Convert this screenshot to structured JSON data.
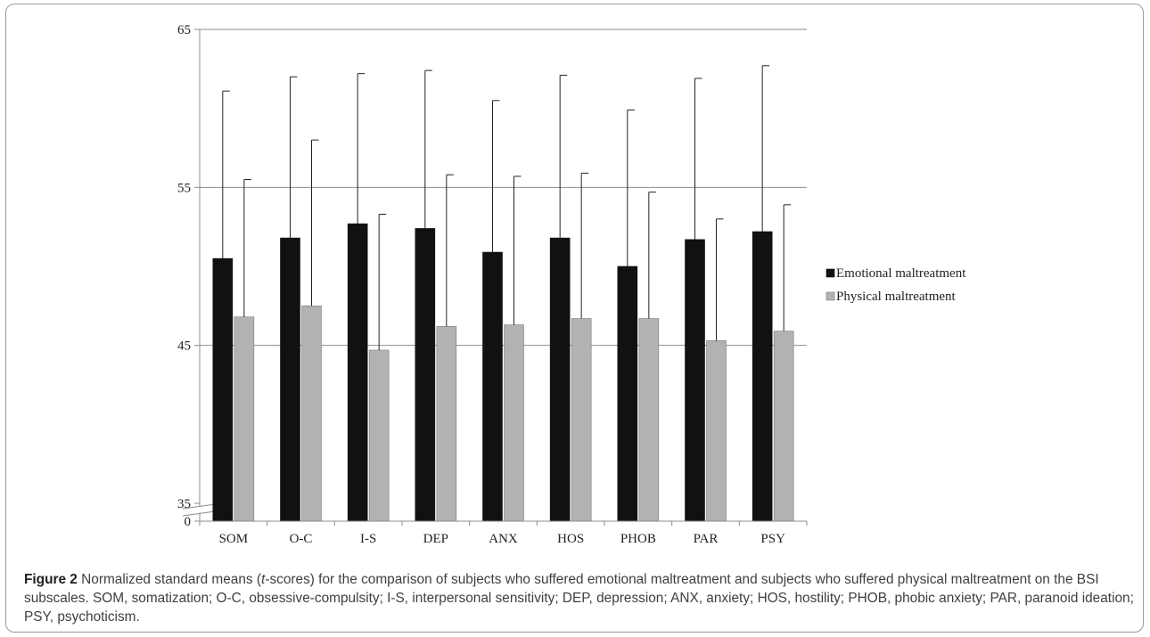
{
  "chart_data": {
    "type": "bar",
    "categories": [
      "SOM",
      "O-C",
      "I-S",
      "DEP",
      "ANX",
      "HOS",
      "PHOB",
      "PAR",
      "PSY"
    ],
    "series": [
      {
        "name": "Emotional maltreatment",
        "color": "#111111",
        "values": [
          50.5,
          51.8,
          52.7,
          52.4,
          50.9,
          51.8,
          50.0,
          51.7,
          52.2
        ],
        "error": [
          10.6,
          10.2,
          9.5,
          10.0,
          9.6,
          10.3,
          9.9,
          10.2,
          10.5
        ]
      },
      {
        "name": "Physical maltreatment",
        "color": "#b2b2b2",
        "values": [
          46.8,
          47.5,
          44.7,
          46.2,
          46.3,
          46.7,
          46.7,
          45.3,
          45.9
        ],
        "error": [
          8.7,
          10.5,
          8.6,
          9.6,
          9.4,
          9.2,
          8.0,
          7.7,
          8.0
        ]
      }
    ],
    "yticks": [
      0,
      35,
      45,
      55,
      65
    ],
    "ylim": [
      30,
      65
    ],
    "y_axis_break": true,
    "grid": true,
    "legend": "right",
    "xlabel": "",
    "ylabel": ""
  },
  "caption": {
    "label": "Figure 2",
    "text_before_italic": " Normalized standard means (",
    "italic": "t",
    "text_after_italic": "-scores) for the comparison of subjects who suffered emotional maltreatment and subjects who suffered physical maltreatment on the BSI subscales. SOM, somatization; O-C, obsessive-compulsity; I-S, interpersonal sensitivity; DEP, depression; ANX, anxiety; HOS, hostility; PHOB, phobic anxiety; PAR, paranoid ideation; PSY, psychoticism."
  }
}
